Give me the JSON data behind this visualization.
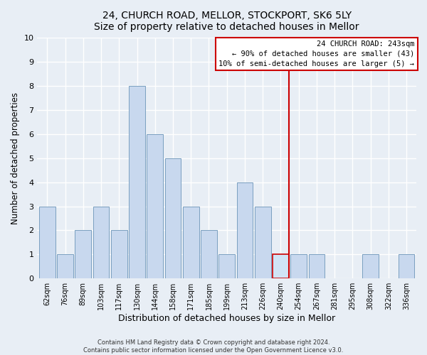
{
  "title": "24, CHURCH ROAD, MELLOR, STOCKPORT, SK6 5LY",
  "subtitle": "Size of property relative to detached houses in Mellor",
  "xlabel": "Distribution of detached houses by size in Mellor",
  "ylabel": "Number of detached properties",
  "bin_labels": [
    "62sqm",
    "76sqm",
    "89sqm",
    "103sqm",
    "117sqm",
    "130sqm",
    "144sqm",
    "158sqm",
    "171sqm",
    "185sqm",
    "199sqm",
    "213sqm",
    "226sqm",
    "240sqm",
    "254sqm",
    "267sqm",
    "281sqm",
    "295sqm",
    "308sqm",
    "322sqm",
    "336sqm"
  ],
  "bar_heights": [
    3,
    1,
    2,
    3,
    2,
    8,
    6,
    5,
    3,
    2,
    1,
    4,
    3,
    1,
    1,
    1,
    0,
    0,
    1,
    0,
    1
  ],
  "bar_color": "#c8d8ee",
  "bar_edge_color": "#7a9fc0",
  "highlight_bar_index": 13,
  "highlight_bar_color": "#d0e4f5",
  "highlight_bar_edge_color": "#cc0000",
  "property_line_color": "#cc0000",
  "ylim": [
    0,
    10
  ],
  "yticks": [
    0,
    1,
    2,
    3,
    4,
    5,
    6,
    7,
    8,
    9,
    10
  ],
  "annotation_title": "24 CHURCH ROAD: 243sqm",
  "annotation_line1": "← 90% of detached houses are smaller (43)",
  "annotation_line2": "10% of semi-detached houses are larger (5) →",
  "footnote1": "Contains HM Land Registry data © Crown copyright and database right 2024.",
  "footnote2": "Contains public sector information licensed under the Open Government Licence v3.0.",
  "bg_color": "#e8eef5",
  "plot_bg_color": "#e8eef5"
}
